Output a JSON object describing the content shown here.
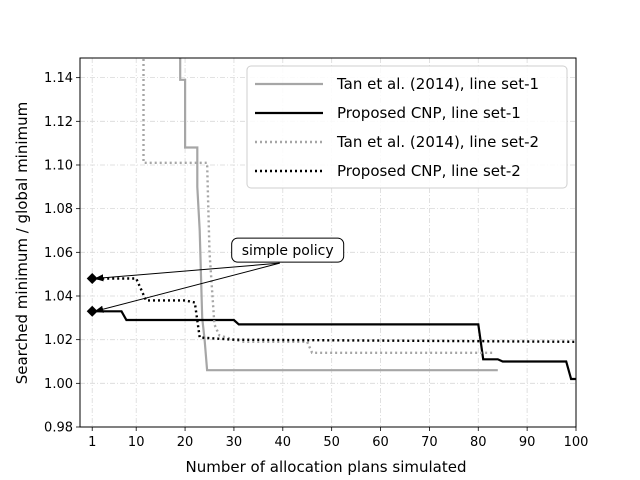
{
  "chart_data": {
    "type": "line",
    "xlabel": "Number of allocation plans simulated",
    "ylabel": "Searched minimum / global minimum",
    "xlim": [
      -1.5,
      100
    ],
    "ylim": [
      0.98,
      1.149
    ],
    "xticks": [
      1,
      10,
      20,
      30,
      40,
      50,
      60,
      70,
      80,
      90,
      100
    ],
    "yticks": [
      0.98,
      1.0,
      1.02,
      1.04,
      1.06,
      1.08,
      1.1,
      1.12,
      1.14
    ],
    "ytick_labels": [
      "0.98",
      "1.00",
      "1.02",
      "1.04",
      "1.06",
      "1.08",
      "1.10",
      "1.12",
      "1.14"
    ],
    "grid": true,
    "legend_position": "top-right",
    "series": [
      {
        "name": "Tan et al. (2014), line set-1",
        "color": "#a6a6a6",
        "style": "solid",
        "points": [
          [
            19,
            1.16
          ],
          [
            19,
            1.139
          ],
          [
            20,
            1.139
          ],
          [
            20,
            1.108
          ],
          [
            22.5,
            1.108
          ],
          [
            22.5,
            1.09
          ],
          [
            23,
            1.07
          ],
          [
            23.5,
            1.03
          ],
          [
            24,
            1.02
          ],
          [
            24.5,
            1.006
          ],
          [
            84,
            1.006
          ]
        ]
      },
      {
        "name": "Proposed CNP, line set-1",
        "color": "#000000",
        "style": "solid",
        "points": [
          [
            1,
            1.033
          ],
          [
            7,
            1.033
          ],
          [
            8,
            1.029
          ],
          [
            30,
            1.029
          ],
          [
            31,
            1.027
          ],
          [
            80,
            1.027
          ],
          [
            81,
            1.011
          ],
          [
            84,
            1.011
          ],
          [
            85,
            1.01
          ],
          [
            98,
            1.01
          ],
          [
            99,
            1.002
          ],
          [
            100,
            1.002
          ]
        ]
      },
      {
        "name": "Tan et al. (2014), line set-2",
        "color": "#a6a6a6",
        "style": "dotted",
        "points": [
          [
            11.5,
            1.16
          ],
          [
            11.5,
            1.101
          ],
          [
            24.5,
            1.101
          ],
          [
            25,
            1.06
          ],
          [
            26,
            1.027
          ],
          [
            27,
            1.022
          ],
          [
            30,
            1.02
          ],
          [
            32,
            1.019
          ],
          [
            45,
            1.019
          ],
          [
            46,
            1.014
          ],
          [
            83,
            1.014
          ]
        ]
      },
      {
        "name": "Proposed CNP, line set-2",
        "color": "#000000",
        "style": "dotted",
        "points": [
          [
            1,
            1.048
          ],
          [
            10,
            1.048
          ],
          [
            11,
            1.043
          ],
          [
            12,
            1.038
          ],
          [
            20,
            1.038
          ],
          [
            22,
            1.037
          ],
          [
            23,
            1.021
          ],
          [
            30,
            1.02
          ],
          [
            100,
            1.019
          ]
        ]
      }
    ],
    "markers": [
      {
        "x": 1,
        "y": 1.048,
        "shape": "diamond"
      },
      {
        "x": 1,
        "y": 1.033,
        "shape": "diamond"
      }
    ],
    "annotation": {
      "text": "simple policy",
      "x": 41,
      "y": 1.061,
      "arrow_targets": [
        [
          1,
          1.048
        ],
        [
          1,
          1.033
        ]
      ]
    }
  }
}
